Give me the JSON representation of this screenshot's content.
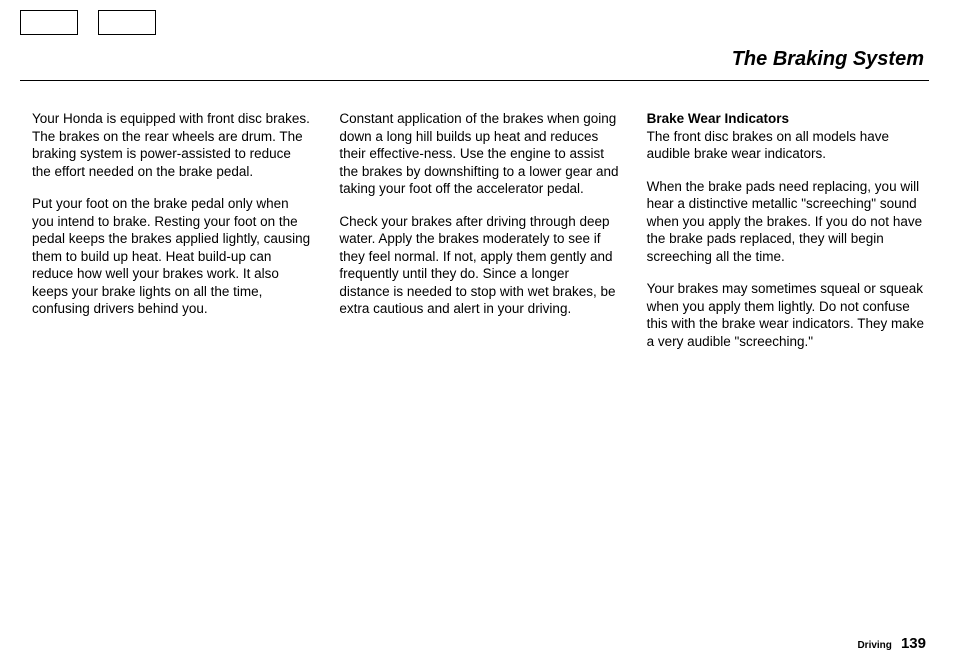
{
  "title": "The Braking System",
  "columns": {
    "col1": {
      "p1": "Your Honda is equipped with front disc brakes. The brakes on the rear wheels are drum. The braking system is power-assisted to reduce the effort needed on the brake pedal.",
      "p2": "Put your foot on the brake pedal only when you intend to brake. Resting your foot on the pedal keeps the brakes applied lightly, causing them to build up heat. Heat build-up can reduce how well your brakes work. It also keeps your brake lights on all the time, confusing drivers behind you."
    },
    "col2": {
      "p1": "Constant application of the brakes when going down a long hill builds up heat and reduces their effective-ness. Use the engine to assist the brakes by downshifting to a lower gear and taking your foot off the accelerator pedal.",
      "p2": "Check your brakes after driving through deep water. Apply the brakes moderately to see if they feel normal. If not, apply them gently and frequently until they do. Since a longer distance is needed to stop with wet brakes, be extra cautious and alert in your driving."
    },
    "col3": {
      "heading": "Brake Wear Indicators",
      "p1": "The front disc brakes on all models have audible brake wear indicators.",
      "p2": "When the brake pads need replacing, you will hear a distinctive metallic \"screeching\" sound when you apply the brakes. If you do not have the brake pads replaced, they will begin screeching all the time.",
      "p3": "Your brakes may sometimes squeal or squeak when you apply them lightly. Do not confuse this with the brake wear indicators. They make a very audible \"screeching.\""
    }
  },
  "footer": {
    "section": "Driving",
    "page": "139"
  }
}
